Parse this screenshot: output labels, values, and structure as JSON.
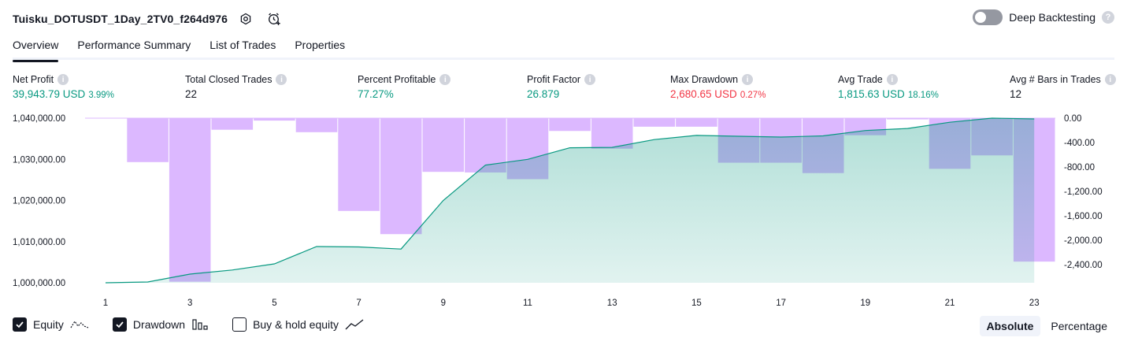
{
  "header": {
    "title": "Tuisku_DOTUSDT_1Day_2TV0_f264d976",
    "settings_icon": "gear-icon",
    "alert_icon": "add-alert-icon"
  },
  "deep_backtesting": {
    "label": "Deep Backtesting",
    "enabled": false,
    "help": "?"
  },
  "tabs": [
    {
      "label": "Overview",
      "active": true
    },
    {
      "label": "Performance Summary",
      "active": false
    },
    {
      "label": "List of Trades",
      "active": false
    },
    {
      "label": "Properties",
      "active": false
    }
  ],
  "metrics": [
    {
      "label": "Net Profit",
      "value": "39,943.79 USD",
      "pct": "3.99%",
      "color": "green"
    },
    {
      "label": "Total Closed Trades",
      "value": "22",
      "pct": "",
      "color": "default"
    },
    {
      "label": "Percent Profitable",
      "value": "77.27%",
      "pct": "",
      "color": "green"
    },
    {
      "label": "Profit Factor",
      "value": "26.879",
      "pct": "",
      "color": "green"
    },
    {
      "label": "Max Drawdown",
      "value": "2,680.65 USD",
      "pct": "0.27%",
      "color": "red"
    },
    {
      "label": "Avg Trade",
      "value": "1,815.63 USD",
      "pct": "18.16%",
      "color": "green"
    },
    {
      "label": "Avg # Bars in Trades",
      "value": "12",
      "pct": "",
      "color": "default"
    }
  ],
  "info_icon": "i",
  "chart_data": {
    "type": "line+bar",
    "x": [
      1,
      2,
      3,
      4,
      5,
      6,
      7,
      8,
      9,
      10,
      11,
      12,
      13,
      14,
      15,
      16,
      17,
      18,
      19,
      20,
      21,
      22,
      23
    ],
    "x_tick_labels": [
      "1",
      "3",
      "5",
      "7",
      "9",
      "11",
      "13",
      "15",
      "17",
      "19",
      "21",
      "23"
    ],
    "equity_axis": {
      "ticks": [
        "1,040,000.00",
        "1,030,000.00",
        "1,020,000.00",
        "1,010,000.00",
        "1,000,000.00"
      ],
      "range": [
        1000000,
        1040000
      ]
    },
    "drawdown_axis": {
      "ticks": [
        "0.00",
        "-400.00",
        "-800.00",
        "-1,200.00",
        "-1,600.00",
        "-2,000.00",
        "-2,400.00"
      ],
      "range": [
        -2680,
        0
      ]
    },
    "series": [
      {
        "name": "Equity",
        "type": "area",
        "color": "#089981",
        "values": [
          1000000,
          1000200,
          1002100,
          1003100,
          1004600,
          1008800,
          1008700,
          1008200,
          1020000,
          1028600,
          1030000,
          1032800,
          1032900,
          1034800,
          1035800,
          1035600,
          1035400,
          1035700,
          1037000,
          1037500,
          1039000,
          1040000,
          1039800
        ]
      },
      {
        "name": "Drawdown",
        "type": "bar",
        "color": "#dcb8ff",
        "values": [
          0,
          -720,
          -2680,
          -190,
          -40,
          -230,
          -1520,
          -1900,
          -880,
          -890,
          -1000,
          -210,
          -500,
          -140,
          -140,
          -730,
          -730,
          -900,
          -280,
          -20,
          -830,
          -610,
          -2350
        ]
      }
    ]
  },
  "legend": [
    {
      "label": "Equity",
      "checked": true,
      "icon": "equity-line-icon"
    },
    {
      "label": "Drawdown",
      "checked": true,
      "icon": "drawdown-bars-icon"
    },
    {
      "label": "Buy & hold equity",
      "checked": false,
      "icon": "buy-hold-line-icon"
    }
  ],
  "modes": [
    {
      "label": "Absolute",
      "active": true
    },
    {
      "label": "Percentage",
      "active": false
    }
  ],
  "colors": {
    "equity": "#089981",
    "equity_fill": "#d5f0e9",
    "drawdown_fill": "#dcb8ff",
    "green": "#089981",
    "red": "#f23645"
  }
}
